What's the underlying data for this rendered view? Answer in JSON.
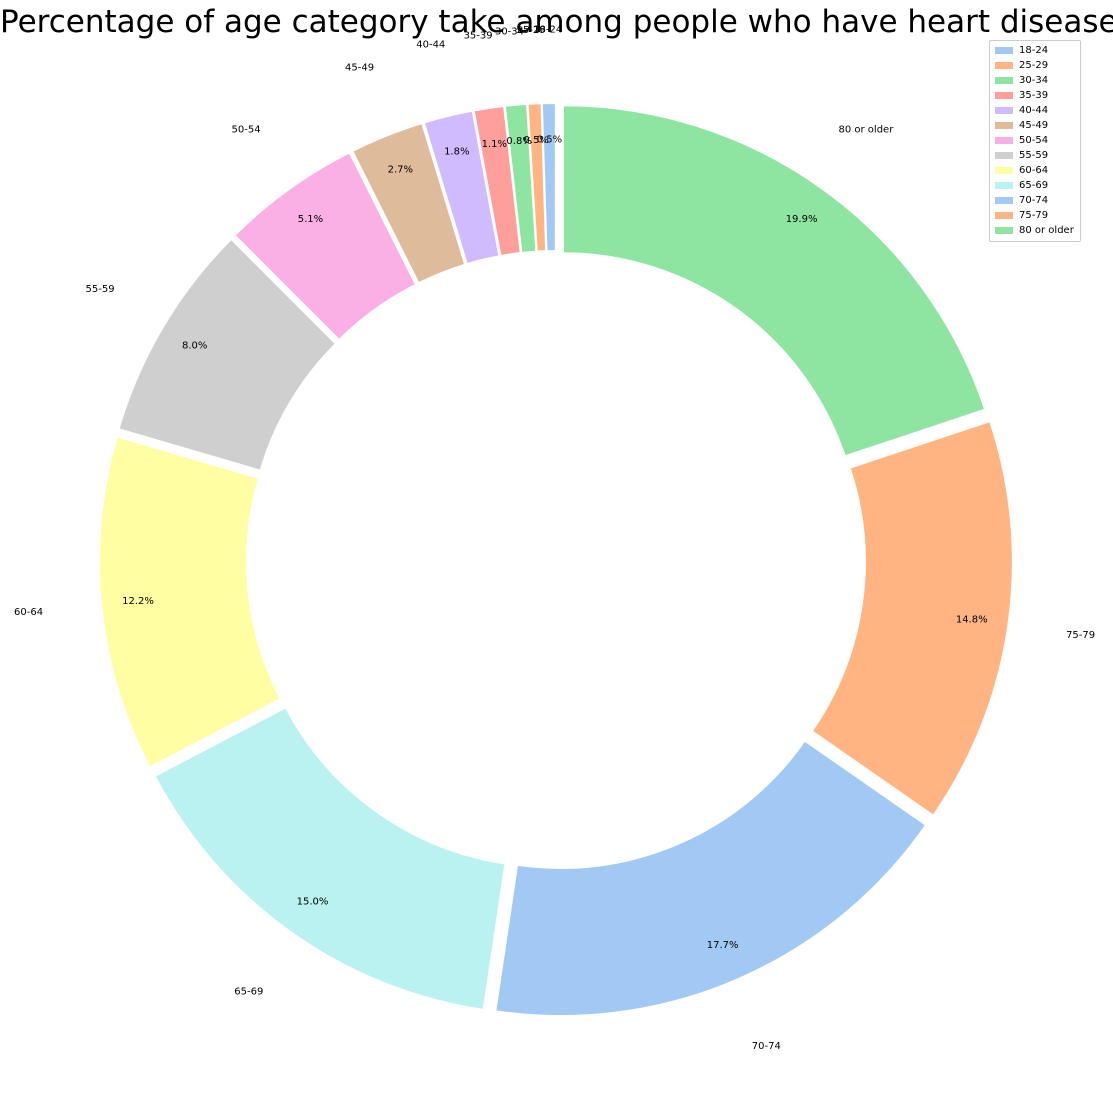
{
  "chart_data": {
    "type": "pie",
    "donut": true,
    "title": "Percentage of age category take among people who have heart diseases",
    "categories": [
      "18-24",
      "25-29",
      "30-34",
      "35-39",
      "40-44",
      "45-49",
      "50-54",
      "55-59",
      "60-64",
      "65-69",
      "70-74",
      "75-79",
      "80 or older"
    ],
    "values": [
      0.5,
      0.5,
      0.8,
      1.1,
      1.8,
      2.7,
      5.1,
      8.0,
      12.2,
      15.0,
      17.7,
      14.8,
      19.9
    ],
    "value_labels": [
      "0.5%",
      "0.5%",
      "0.8%",
      "1.1%",
      "1.8%",
      "2.7%",
      "5.1%",
      "8.0%",
      "12.2%",
      "15.0%",
      "17.7%",
      "14.8%",
      "19.9%"
    ],
    "colors": [
      "#a1c9f4",
      "#ffb482",
      "#8de5a1",
      "#ff9f9b",
      "#d0bbff",
      "#debb9b",
      "#fab0e4",
      "#cfcfcf",
      "#fffea3",
      "#b9f2f0",
      "#a1c9f4",
      "#ffb482",
      "#8de5a1"
    ],
    "start_angle_deg": 90,
    "direction": "counterclockwise",
    "legend": {
      "position": "top-right"
    }
  }
}
